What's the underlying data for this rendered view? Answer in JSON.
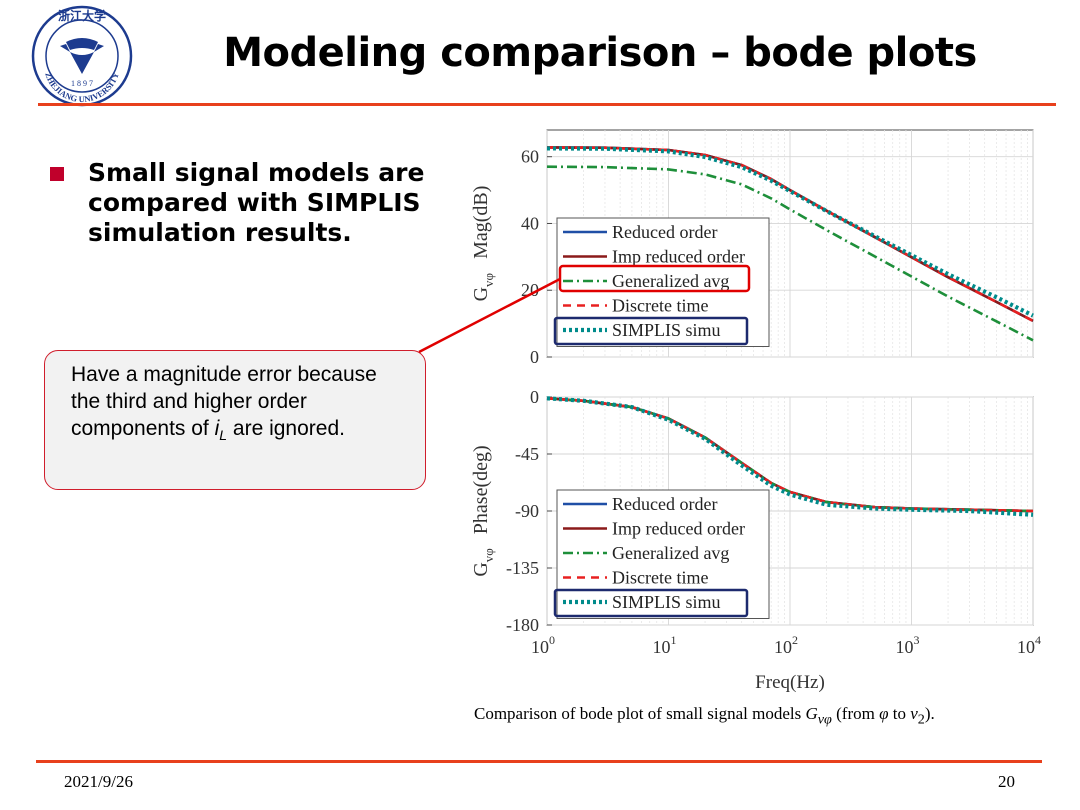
{
  "slide": {
    "title": "Modeling comparison – bode plots",
    "bullet": "Small signal models are compared with SIMPLIS simulation results.",
    "callout_pre": "Have a magnitude error because the third and higher order components of ",
    "callout_var": "i",
    "callout_sub": "L",
    "callout_post": " are ignored.",
    "date": "2021/9/26",
    "page_number": "20"
  },
  "logo": {
    "name": "Zhejiang University seal",
    "text_top": "浙江大学",
    "text_year": "1 8 9 7",
    "text_bottom": "ZHEJIANG UNIVERSITY"
  },
  "caption": {
    "pre": "Comparison of bode plot of small signal models ",
    "var": "G",
    "sub": "vφ",
    "mid": " (from ",
    "phi": "φ",
    "to": " to ",
    "v2": "v",
    "v2sub": "2",
    "end": ")."
  },
  "colors": {
    "accent": "#e8401c",
    "callout_border": "#d01e2c",
    "highlight_navy": "#1d2a6e",
    "reduced": "#1f4fa6",
    "imp_reduced": "#8b1a1a",
    "generalized": "#1e8f3a",
    "discrete": "#e82020",
    "simplis": "#008b8b"
  },
  "chart_data": [
    {
      "type": "line",
      "title": "",
      "xlabel": "",
      "ylabel": "G_vφ  Mag(dB)",
      "x_scale": "log",
      "xlim": [
        1,
        10000
      ],
      "ylim": [
        0,
        68
      ],
      "yticks": [
        0,
        20,
        40,
        60
      ],
      "x_ticks": [
        "10^0",
        "10^1",
        "10^2",
        "10^3",
        "10^4"
      ],
      "legend": "center",
      "grid": true,
      "x": [
        1,
        3,
        10,
        20,
        40,
        70,
        100,
        200,
        500,
        1000,
        2000,
        5000,
        10000
      ],
      "series": [
        {
          "name": "Reduced order",
          "style": "solid",
          "values": [
            62.8,
            62.7,
            62.0,
            60.5,
            57.5,
            53.3,
            50.0,
            43.8,
            35.9,
            29.9,
            23.9,
            16.5,
            10.8
          ]
        },
        {
          "name": "Imp reduced order",
          "style": "solid",
          "values": [
            62.8,
            62.7,
            62.0,
            60.5,
            57.5,
            53.3,
            50.0,
            43.8,
            35.9,
            29.9,
            23.9,
            16.5,
            10.8
          ]
        },
        {
          "name": "Generalized avg",
          "style": "dashdot",
          "values": [
            57.0,
            56.9,
            56.2,
            54.7,
            51.7,
            47.5,
            44.2,
            38.0,
            30.1,
            24.1,
            18.1,
            10.7,
            5.0
          ]
        },
        {
          "name": "Discrete time",
          "style": "dashed",
          "values": [
            62.8,
            62.7,
            62.0,
            60.5,
            57.5,
            53.3,
            50.0,
            43.8,
            35.9,
            29.9,
            23.9,
            16.5,
            10.8
          ]
        },
        {
          "name": "SIMPLIS simu",
          "style": "dotted",
          "values": [
            62.5,
            62.4,
            61.6,
            59.9,
            56.9,
            52.8,
            49.7,
            43.7,
            36.2,
            30.5,
            24.8,
            17.9,
            12.4
          ]
        }
      ]
    },
    {
      "type": "line",
      "title": "",
      "xlabel": "Freq(Hz)",
      "ylabel": "G_vφ  Phase(deg)",
      "x_scale": "log",
      "xlim": [
        1,
        10000
      ],
      "ylim": [
        -180,
        0
      ],
      "yticks": [
        0,
        -45,
        -90,
        -135,
        -180
      ],
      "x_ticks": [
        "10^0",
        "10^1",
        "10^2",
        "10^3",
        "10^4"
      ],
      "legend": "center",
      "grid": true,
      "x": [
        1,
        2,
        5,
        10,
        20,
        40,
        70,
        100,
        200,
        500,
        1000,
        3000,
        10000
      ],
      "series": [
        {
          "name": "Reduced order",
          "style": "solid",
          "values": [
            -1,
            -3,
            -8,
            -17,
            -32,
            -52,
            -68,
            -75,
            -83,
            -87,
            -88,
            -89,
            -90
          ]
        },
        {
          "name": "Imp reduced order",
          "style": "solid",
          "values": [
            -1,
            -3,
            -8,
            -17,
            -32,
            -52,
            -68,
            -75,
            -83,
            -87,
            -88,
            -89,
            -90
          ]
        },
        {
          "name": "Generalized avg",
          "style": "dashdot",
          "values": [
            -1,
            -3,
            -8,
            -17,
            -32,
            -52,
            -68,
            -75,
            -83,
            -87,
            -88,
            -89,
            -90
          ]
        },
        {
          "name": "Discrete time",
          "style": "dashed",
          "values": [
            -1,
            -3,
            -8,
            -17,
            -32,
            -52,
            -68,
            -75,
            -83,
            -87,
            -88,
            -89,
            -90
          ]
        },
        {
          "name": "SIMPLIS simu",
          "style": "dotted",
          "values": [
            -1,
            -3,
            -8,
            -18,
            -33,
            -54,
            -70,
            -77,
            -85,
            -88,
            -89,
            -90,
            -93
          ]
        }
      ]
    }
  ]
}
